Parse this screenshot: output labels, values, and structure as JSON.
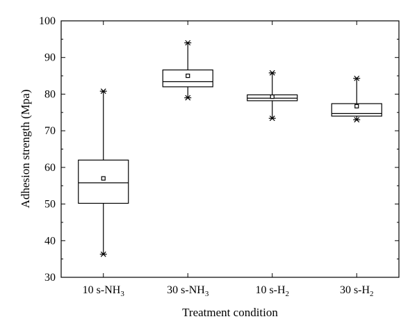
{
  "chart_data": {
    "type": "box",
    "title": "",
    "xlabel": "Treatment condition",
    "ylabel": "Adhesion strength (Mpa)",
    "ylim": [
      30,
      100
    ],
    "yticks": [
      30,
      40,
      50,
      60,
      70,
      80,
      90,
      100
    ],
    "grid": false,
    "categories": [
      {
        "base": "10 s-NH",
        "sub": "3"
      },
      {
        "base": "30 s-NH",
        "sub": "3"
      },
      {
        "base": "10 s-H",
        "sub": "2"
      },
      {
        "base": "30 s-H",
        "sub": "2"
      }
    ],
    "boxes": [
      {
        "min": 36.3,
        "q1": 50.2,
        "median": 55.8,
        "q3": 62.0,
        "max": 80.8,
        "mean": 57.0
      },
      {
        "min": 79.0,
        "q1": 82.0,
        "median": 83.4,
        "q3": 86.6,
        "max": 94.0,
        "mean": 85.0
      },
      {
        "min": 73.4,
        "q1": 78.2,
        "median": 78.9,
        "q3": 79.8,
        "max": 85.8,
        "mean": 79.3
      },
      {
        "min": 73.0,
        "q1": 74.0,
        "median": 74.7,
        "q3": 77.4,
        "max": 84.3,
        "mean": 76.7
      }
    ]
  }
}
